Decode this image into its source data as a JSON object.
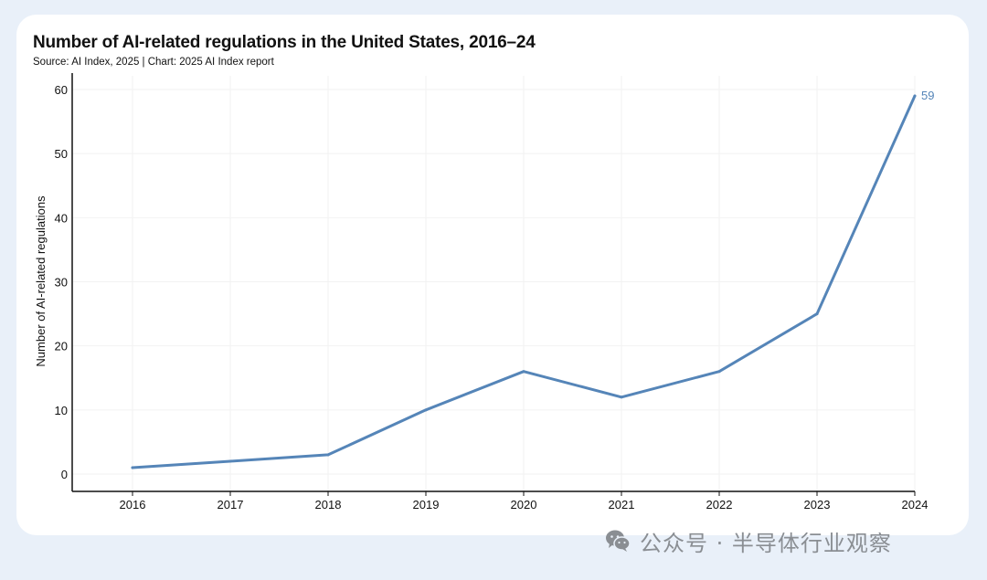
{
  "chart_data": {
    "type": "line",
    "title": "Number of AI-related regulations in the United States, 2016–24",
    "subtitle": "Source: AI Index, 2025 | Chart: 2025 AI Index report",
    "xlabel": "",
    "ylabel": "Number of AI-related regulations",
    "categories": [
      "2016",
      "2017",
      "2018",
      "2019",
      "2020",
      "2021",
      "2022",
      "2023",
      "2024"
    ],
    "series": [
      {
        "name": "AI-related regulations",
        "values": [
          1,
          2,
          3,
          10,
          16,
          12,
          16,
          25,
          59
        ]
      }
    ],
    "ylim": [
      0,
      60
    ],
    "yticks": [
      0,
      10,
      20,
      30,
      40,
      50,
      60
    ],
    "grid": true,
    "annotations": [
      {
        "index": 8,
        "label": "59"
      }
    ],
    "colors": {
      "line": "#5585b8",
      "axis": "#111111",
      "grid": "#f2f2f2"
    }
  },
  "watermark": {
    "text": "公众号 · 半导体行业观察",
    "icon": "wechat-icon"
  }
}
